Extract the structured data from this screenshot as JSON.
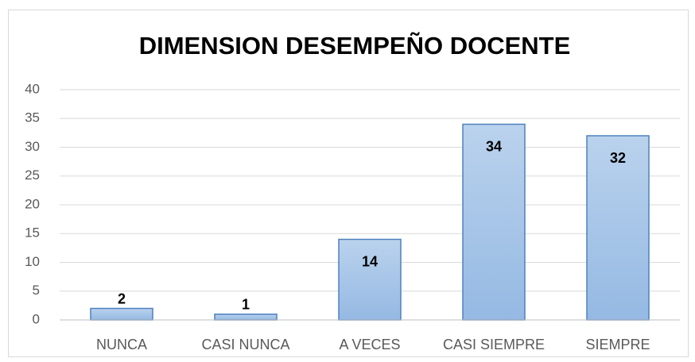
{
  "chart_data": {
    "type": "bar",
    "title": "DIMENSION DESEMPEÑO DOCENTE",
    "categories": [
      "NUNCA",
      "CASI NUNCA",
      "A VECES",
      "CASI SIEMPRE",
      "SIEMPRE"
    ],
    "values": [
      2,
      1,
      14,
      34,
      32
    ],
    "color": "#95b9e3",
    "edge_color": "#4f81bd",
    "ylim": [
      0,
      40
    ],
    "yticks": [
      0,
      5,
      10,
      15,
      20,
      25,
      30,
      35,
      40
    ],
    "grid": true
  }
}
